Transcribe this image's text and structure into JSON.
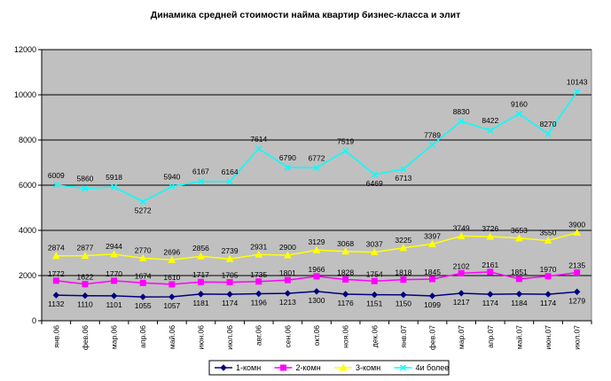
{
  "chart_data": {
    "type": "line",
    "title": "Динамика средней стоимости найма квартир бизнес-класса и элит",
    "xlabel": "",
    "ylabel": "",
    "ylim": [
      0,
      12000
    ],
    "yticks": [
      0,
      2000,
      4000,
      6000,
      8000,
      10000,
      12000
    ],
    "grid": true,
    "legend_position": "bottom",
    "categories": [
      "янв.06",
      "фев.06",
      "мар.06",
      "апр.06",
      "май.06",
      "июн.06",
      "июл.06",
      "авг.06",
      "сен.06",
      "окт.06",
      "ноя.06",
      "дек.06",
      "янв.07",
      "фев.07",
      "мар.07",
      "апр.07",
      "май.07",
      "июн.07",
      "июл.07"
    ],
    "series": [
      {
        "name": "1-комн",
        "color": "#000080",
        "marker": "diamond",
        "values": [
          1132,
          1110,
          1101,
          1055,
          1057,
          1181,
          1174,
          1196,
          1213,
          1300,
          1176,
          1151,
          1150,
          1099,
          1217,
          1174,
          1184,
          1174,
          1279
        ]
      },
      {
        "name": "2-комн",
        "color": "#FF00FF",
        "marker": "square",
        "values": [
          1772,
          1622,
          1770,
          1674,
          1610,
          1717,
          1705,
          1735,
          1801,
          1966,
          1828,
          1754,
          1818,
          1845,
          2102,
          2161,
          1851,
          1970,
          2135
        ]
      },
      {
        "name": "3-комн",
        "color": "#FFFF00",
        "marker": "triangle",
        "values": [
          2874,
          2877,
          2944,
          2770,
          2696,
          2856,
          2739,
          2931,
          2900,
          3129,
          3068,
          3037,
          3225,
          3397,
          3749,
          3726,
          3653,
          3550,
          3900
        ]
      },
      {
        "name": "4и более",
        "color": "#00FFFF",
        "marker": "x",
        "values": [
          6009,
          5860,
          5918,
          5272,
          5940,
          6167,
          6164,
          7614,
          6790,
          6772,
          7519,
          6469,
          6713,
          7789,
          8830,
          8422,
          9160,
          8270,
          10143
        ]
      }
    ],
    "plot_background": "#C0C0C0"
  }
}
